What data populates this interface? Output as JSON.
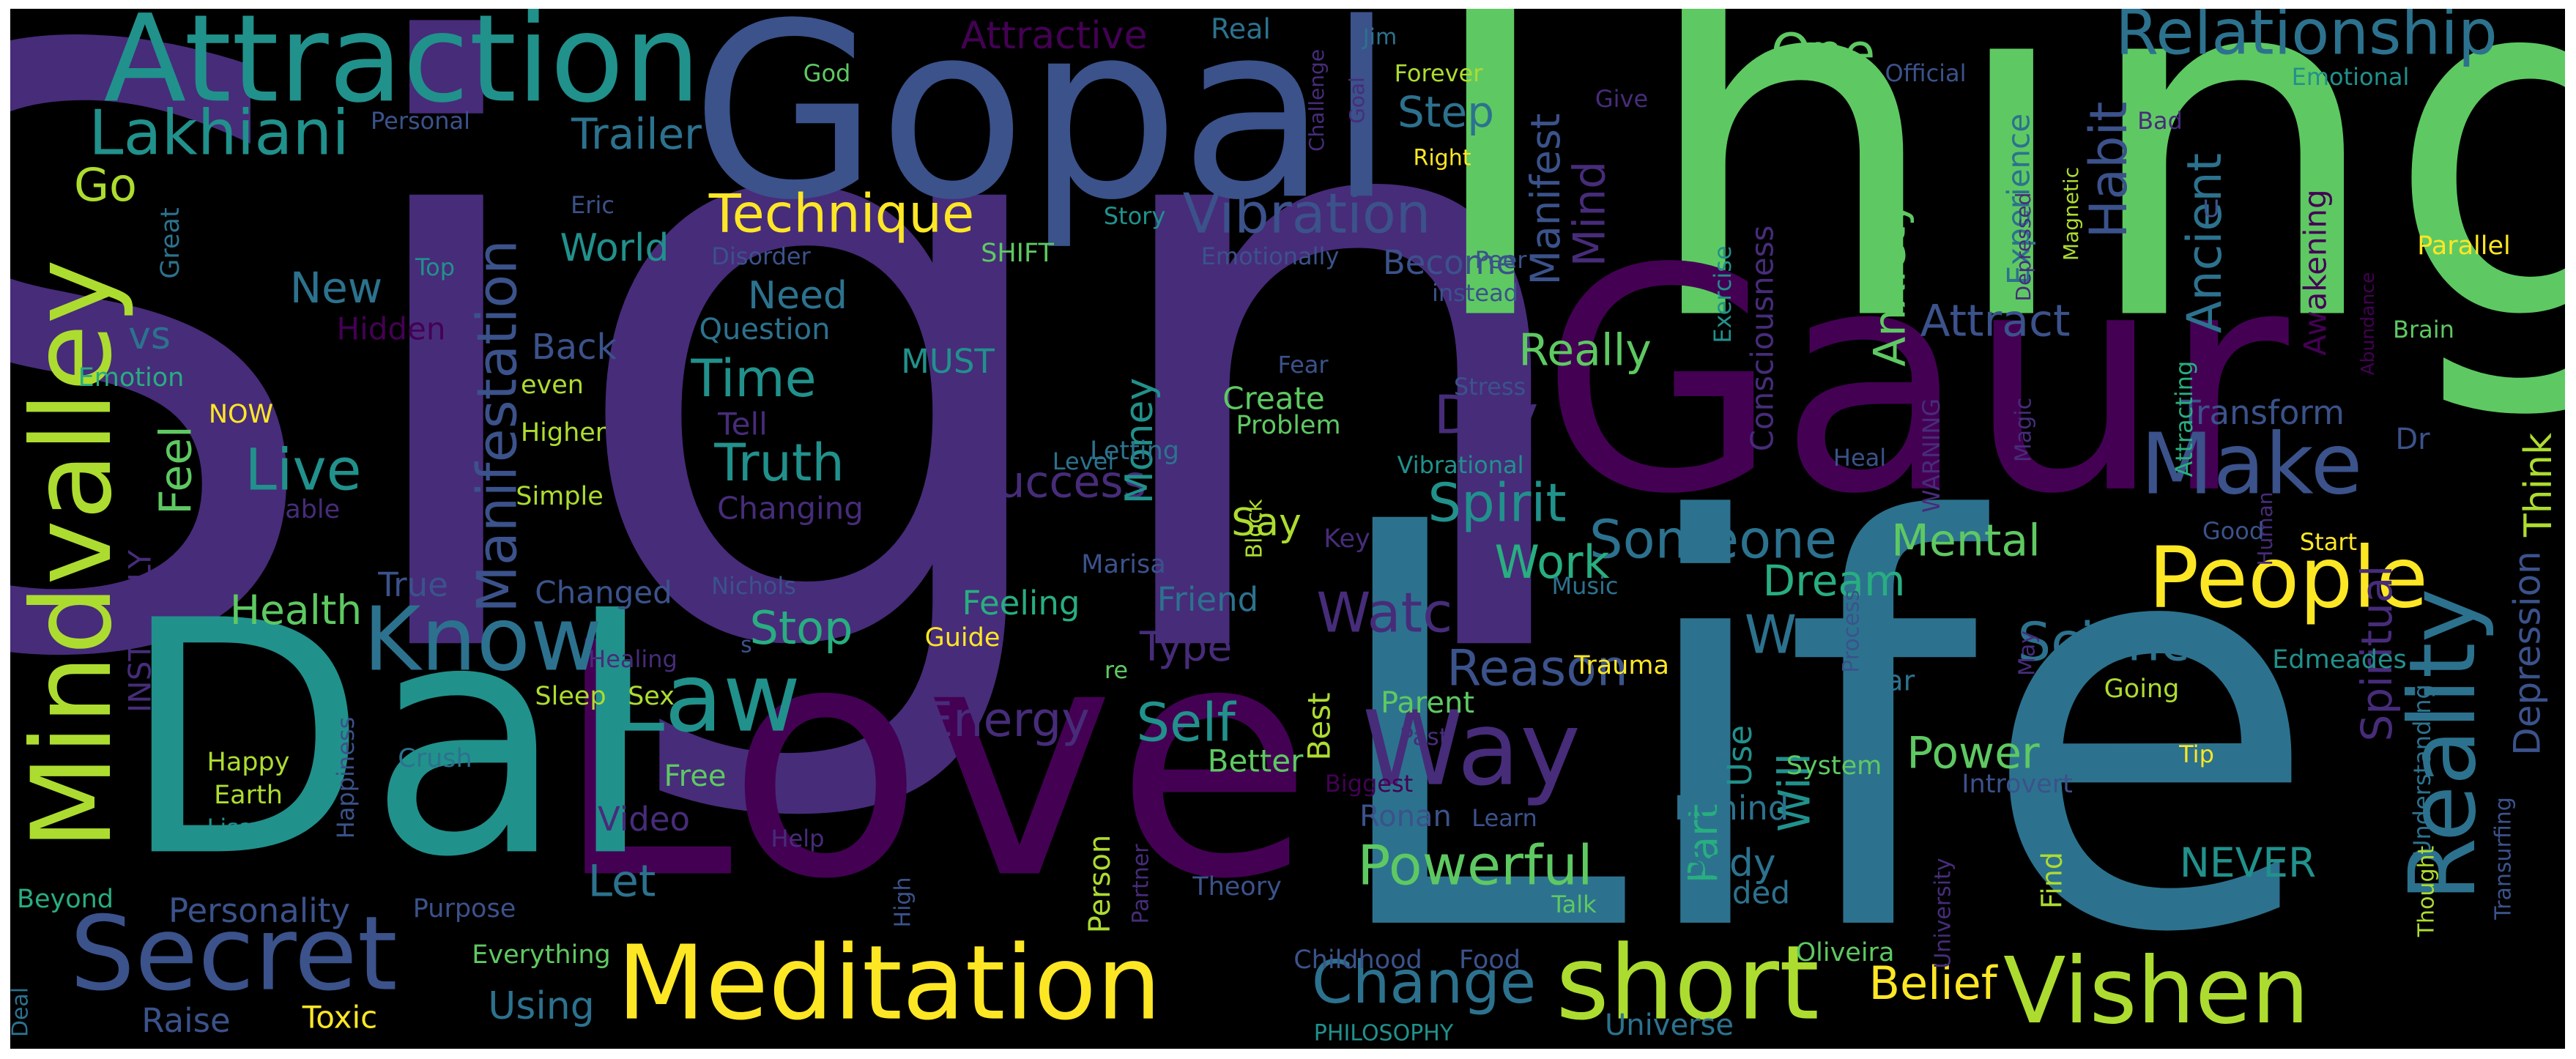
{
  "background": "#000000",
  "palette": {
    "c1": "#440154",
    "c2": "#472c7a",
    "c3": "#3b528b",
    "c4": "#2c728e",
    "c5": "#21918c",
    "c6": "#28ae80",
    "c7": "#5ec962",
    "c8": "#addc30",
    "c9": "#fde725"
  },
  "words": [
    {
      "text": "Sign",
      "size": 1,
      "color": "c2"
    },
    {
      "text": "Thing",
      "size": 0.62,
      "color": "c7"
    },
    {
      "text": "Life",
      "size": 0.74,
      "color": "c4"
    },
    {
      "text": "Gaur",
      "size": 0.52,
      "color": "c1"
    },
    {
      "text": "Love",
      "size": 0.55,
      "color": "c1"
    },
    {
      "text": "Gopal",
      "size": 0.42,
      "color": "c3"
    },
    {
      "text": "Dal",
      "size": 0.55,
      "color": "c5"
    },
    {
      "text": "Attraction",
      "size": 0.26,
      "color": "c5"
    },
    {
      "text": "Mindvalley",
      "size": 0.26,
      "color": "c8"
    },
    {
      "text": "Meditation",
      "size": 0.22,
      "color": "c9"
    },
    {
      "text": "short",
      "size": 0.22,
      "color": "c8"
    },
    {
      "text": "Secret",
      "size": 0.22,
      "color": "c3"
    },
    {
      "text": "Vishen",
      "size": 0.21,
      "color": "c8"
    },
    {
      "text": "Reality",
      "size": 0.2,
      "color": "c4"
    },
    {
      "text": "Way",
      "size": 0.2,
      "color": "c2"
    },
    {
      "text": "People",
      "size": 0.2,
      "color": "c9"
    },
    {
      "text": "Law",
      "size": 0.2,
      "color": "c5"
    },
    {
      "text": "Know",
      "size": 0.2,
      "color": "c4"
    },
    {
      "text": "Make",
      "size": 0.2,
      "color": "c3"
    },
    {
      "text": "Relationship",
      "size": 0.16,
      "color": "c4"
    },
    {
      "text": "Lakhiani",
      "size": 0.15,
      "color": "c5"
    },
    {
      "text": "Manifestation",
      "size": 0.14,
      "color": "c3"
    },
    {
      "text": "Change",
      "size": 0.13,
      "color": "c4"
    },
    {
      "text": "Powerful",
      "size": 0.13,
      "color": "c7"
    },
    {
      "text": "Vibration",
      "size": 0.13,
      "color": "c3"
    },
    {
      "text": "Technique",
      "size": 0.13,
      "color": "c9"
    },
    {
      "text": "Watch",
      "size": 0.13,
      "color": "c2"
    },
    {
      "text": "Someone",
      "size": 0.12,
      "color": "c4"
    },
    {
      "text": "Truth",
      "size": 0.12,
      "color": "c5"
    },
    {
      "text": "Spirit",
      "size": 0.12,
      "color": "c5"
    },
    {
      "text": "Energy",
      "size": 0.12,
      "color": "c2"
    },
    {
      "text": "Self",
      "size": 0.12,
      "color": "c5"
    },
    {
      "text": "Success",
      "size": 0.12,
      "color": "c2"
    },
    {
      "text": "Science",
      "size": 0.12,
      "color": "c4"
    },
    {
      "text": "Want",
      "size": 0.12,
      "color": "c4"
    },
    {
      "text": "Day",
      "size": 0.12,
      "color": "c2"
    },
    {
      "text": "Reason",
      "size": 0.12,
      "color": "c3"
    },
    {
      "text": "Live",
      "size": 0.12,
      "color": "c5"
    },
    {
      "text": "Time",
      "size": 0.12,
      "color": "c5"
    },
    {
      "text": "Belief",
      "size": 0.11,
      "color": "c9"
    },
    {
      "text": "Trailer",
      "size": 0.1,
      "color": "c4"
    },
    {
      "text": "Step",
      "size": 0.1,
      "color": "c4"
    },
    {
      "text": "One",
      "size": 0.1,
      "color": "c7"
    },
    {
      "text": "World",
      "size": 0.09,
      "color": "c5"
    },
    {
      "text": "Go",
      "size": 0.11,
      "color": "c8"
    },
    {
      "text": "Habit",
      "size": 0.11,
      "color": "c3"
    },
    {
      "text": "Anxiety",
      "size": 0.11,
      "color": "c7"
    },
    {
      "text": "Ancient",
      "size": 0.11,
      "color": "c4"
    },
    {
      "text": "Attract",
      "size": 0.11,
      "color": "c3"
    },
    {
      "text": "Mind",
      "size": 0.11,
      "color": "c2"
    },
    {
      "text": "Manifest",
      "size": 0.11,
      "color": "c3"
    },
    {
      "text": "Really",
      "size": 0.11,
      "color": "c7"
    },
    {
      "text": "Work",
      "size": 0.11,
      "color": "c6"
    },
    {
      "text": "Mental",
      "size": 0.11,
      "color": "c7"
    },
    {
      "text": "Dream",
      "size": 0.11,
      "color": "c6"
    },
    {
      "text": "Stop",
      "size": 0.11,
      "color": "c6"
    },
    {
      "text": "Health",
      "size": 0.11,
      "color": "c7"
    },
    {
      "text": "Feel",
      "size": 0.11,
      "color": "c7"
    },
    {
      "text": "Type",
      "size": 0.11,
      "color": "c2"
    },
    {
      "text": "Part",
      "size": 0.11,
      "color": "c6"
    },
    {
      "text": "Will",
      "size": 0.11,
      "color": "c5"
    },
    {
      "text": "Body",
      "size": 0.1,
      "color": "c4"
    },
    {
      "text": "Power",
      "size": 0.1,
      "color": "c7"
    },
    {
      "text": "Let",
      "size": 0.1,
      "color": "c4"
    },
    {
      "text": "Using",
      "size": 0.1,
      "color": "c4"
    },
    {
      "text": "Spiritual",
      "size": 0.1,
      "color": "c2"
    },
    {
      "text": "Depression",
      "size": 0.1,
      "color": "c3"
    },
    {
      "text": "NEVER",
      "size": 0.1,
      "color": "c5"
    },
    {
      "text": "Think",
      "size": 0.1,
      "color": "c8"
    },
    {
      "text": "Money",
      "size": 0.1,
      "color": "c5"
    },
    {
      "text": "Need",
      "size": 0.1,
      "color": "c4"
    },
    {
      "text": "New",
      "size": 0.1,
      "color": "c4"
    },
    {
      "text": "Attractive",
      "size": 0.09,
      "color": "c1"
    },
    {
      "text": "vs",
      "size": 0.09,
      "color": "c4"
    },
    {
      "text": "Say",
      "size": 0.09,
      "color": "c8"
    },
    {
      "text": "Use",
      "size": 0.09,
      "color": "c5"
    },
    {
      "text": "Back",
      "size": 0.09,
      "color": "c3"
    },
    {
      "text": "Become",
      "size": 0.08,
      "color": "c3"
    },
    {
      "text": "Personality",
      "size": 0.08,
      "color": "c3"
    },
    {
      "text": "Behind",
      "size": 0.08,
      "color": "c4"
    },
    {
      "text": "Guided",
      "size": 0.08,
      "color": "c4"
    },
    {
      "text": "Transform",
      "size": 0.08,
      "color": "c3"
    },
    {
      "text": "Consciousness",
      "size": 0.08,
      "color": "c2"
    },
    {
      "text": "Experience",
      "size": 0.08,
      "color": "c4"
    },
    {
      "text": "Awakening",
      "size": 0.08,
      "color": "c1"
    },
    {
      "text": "True",
      "size": 0.08,
      "color": "c3"
    },
    {
      "text": "Changed",
      "size": 0.08,
      "color": "c3"
    },
    {
      "text": "Friend",
      "size": 0.08,
      "color": "c4"
    },
    {
      "text": "Question",
      "size": 0.08,
      "color": "c4"
    },
    {
      "text": "Create",
      "size": 0.08,
      "color": "c7"
    },
    {
      "text": "Feeling",
      "size": 0.08,
      "color": "c6"
    },
    {
      "text": "Changing",
      "size": 0.08,
      "color": "c2"
    },
    {
      "text": "Hidden",
      "size": 0.08,
      "color": "c1"
    },
    {
      "text": "INSTANTLY",
      "size": 0.08,
      "color": "c2"
    },
    {
      "text": "MUST",
      "size": 0.08,
      "color": "c5"
    },
    {
      "text": "Better",
      "size": 0.08,
      "color": "c7"
    },
    {
      "text": "Free",
      "size": 0.08,
      "color": "c7"
    },
    {
      "text": "Video",
      "size": 0.08,
      "color": "c2"
    },
    {
      "text": "Raise",
      "size": 0.08,
      "color": "c3"
    },
    {
      "text": "Toxic",
      "size": 0.08,
      "color": "c9"
    },
    {
      "text": "Person",
      "size": 0.08,
      "color": "c8"
    },
    {
      "text": "Ronan",
      "size": 0.08,
      "color": "c3"
    },
    {
      "text": "Best",
      "size": 0.08,
      "color": "c8"
    },
    {
      "text": "Parent",
      "size": 0.08,
      "color": "c7"
    },
    {
      "text": "Year",
      "size": 0.08,
      "color": "c4"
    },
    {
      "text": "Find",
      "size": 0.08,
      "color": "c8"
    },
    {
      "text": "Dr",
      "size": 0.08,
      "color": "c3"
    },
    {
      "text": "Tell",
      "size": 0.08,
      "color": "c2"
    },
    {
      "text": "Emotion",
      "size": 0.06,
      "color": "c6"
    },
    {
      "text": "Great",
      "size": 0.06,
      "color": "c4"
    },
    {
      "text": "NOW",
      "size": 0.07,
      "color": "c9"
    },
    {
      "text": "Parable",
      "size": 0.06,
      "color": "c2"
    },
    {
      "text": "Simple",
      "size": 0.06,
      "color": "c8"
    },
    {
      "text": "Higher",
      "size": 0.06,
      "color": "c8"
    },
    {
      "text": "even",
      "size": 0.06,
      "color": "c8"
    },
    {
      "text": "Happy",
      "size": 0.06,
      "color": "c8"
    },
    {
      "text": "Earth",
      "size": 0.06,
      "color": "c8"
    },
    {
      "text": "Lisa",
      "size": 0.06,
      "color": "c5"
    },
    {
      "text": "Beyond",
      "size": 0.06,
      "color": "c6"
    },
    {
      "text": "Deal",
      "size": 0.05,
      "color": "c4"
    },
    {
      "text": "Everything",
      "size": 0.06,
      "color": "c7"
    },
    {
      "text": "Purpose",
      "size": 0.06,
      "color": "c3"
    },
    {
      "text": "Happiness",
      "size": 0.06,
      "color": "c3"
    },
    {
      "text": "Crush",
      "size": 0.06,
      "color": "c4"
    },
    {
      "text": "Healing",
      "size": 0.06,
      "color": "c2"
    },
    {
      "text": "Sleep",
      "size": 0.06,
      "color": "c8"
    },
    {
      "text": "Sex",
      "size": 0.06,
      "color": "c8"
    },
    {
      "text": "Nichols",
      "size": 0.06,
      "color": "c3"
    },
    {
      "text": "Guide",
      "size": 0.06,
      "color": "c9"
    },
    {
      "text": "Marisa",
      "size": 0.06,
      "color": "c3"
    },
    {
      "text": "Letting",
      "size": 0.06,
      "color": "c4"
    },
    {
      "text": "Level",
      "size": 0.06,
      "color": "c4"
    },
    {
      "text": "Problem",
      "size": 0.06,
      "color": "c7"
    },
    {
      "text": "Block",
      "size": 0.06,
      "color": "c8"
    },
    {
      "text": "Key",
      "size": 0.06,
      "color": "c2"
    },
    {
      "text": "Fear",
      "size": 0.06,
      "color": "c3"
    },
    {
      "text": "Stress",
      "size": 0.06,
      "color": "c3"
    },
    {
      "text": "Vibrational",
      "size": 0.06,
      "color": "c5"
    },
    {
      "text": "Music",
      "size": 0.06,
      "color": "c4"
    },
    {
      "text": "Trauma",
      "size": 0.06,
      "color": "c9"
    },
    {
      "text": "Past",
      "size": 0.06,
      "color": "c2"
    },
    {
      "text": "Biggest",
      "size": 0.06,
      "color": "c1"
    },
    {
      "text": "Learn",
      "size": 0.06,
      "color": "c3"
    },
    {
      "text": "Talk",
      "size": 0.06,
      "color": "c7"
    },
    {
      "text": "Theory",
      "size": 0.06,
      "color": "c3"
    },
    {
      "text": "High",
      "size": 0.06,
      "color": "c3"
    },
    {
      "text": "Help",
      "size": 0.06,
      "color": "c2"
    },
    {
      "text": "Partner",
      "size": 0.06,
      "color": "c2"
    },
    {
      "text": "re",
      "size": 0.06,
      "color": "c7"
    },
    {
      "text": "s",
      "size": 0.06,
      "color": "c3"
    },
    {
      "text": "Childhood",
      "size": 0.06,
      "color": "c3"
    },
    {
      "text": "Food",
      "size": 0.06,
      "color": "c3"
    },
    {
      "text": "PHILOSOPHY",
      "size": 0.06,
      "color": "c5"
    },
    {
      "text": "Universe",
      "size": 0.06,
      "color": "c4"
    },
    {
      "text": "Oliveira",
      "size": 0.06,
      "color": "c7"
    },
    {
      "text": "University",
      "size": 0.06,
      "color": "c2"
    },
    {
      "text": "System",
      "size": 0.06,
      "color": "c7"
    },
    {
      "text": "Introvert",
      "size": 0.06,
      "color": "c3"
    },
    {
      "text": "Process",
      "size": 0.06,
      "color": "c3"
    },
    {
      "text": "May",
      "size": 0.06,
      "color": "c2"
    },
    {
      "text": "Going",
      "size": 0.06,
      "color": "c8"
    },
    {
      "text": "Tip",
      "size": 0.06,
      "color": "c9"
    },
    {
      "text": "Edmeades",
      "size": 0.06,
      "color": "c5"
    },
    {
      "text": "Understanding",
      "size": 0.06,
      "color": "c4"
    },
    {
      "text": "Transurfing",
      "size": 0.06,
      "color": "c3"
    },
    {
      "text": "Thought",
      "size": 0.06,
      "color": "c8"
    },
    {
      "text": "Human",
      "size": 0.06,
      "color": "c2"
    },
    {
      "text": "Attracting",
      "size": 0.06,
      "color": "c6"
    },
    {
      "text": "Start",
      "size": 0.06,
      "color": "c9"
    },
    {
      "text": "Good",
      "size": 0.06,
      "color": "c3"
    },
    {
      "text": "Magic",
      "size": 0.06,
      "color": "c2"
    },
    {
      "text": "WARNING",
      "size": 0.06,
      "color": "c2"
    },
    {
      "text": "Heal",
      "size": 0.06,
      "color": "c3"
    },
    {
      "text": "Exercise",
      "size": 0.06,
      "color": "c5"
    },
    {
      "text": "Peer",
      "size": 0.06,
      "color": "c3"
    },
    {
      "text": "instead",
      "size": 0.06,
      "color": "c3"
    },
    {
      "text": "Emotionally",
      "size": 0.06,
      "color": "c3"
    },
    {
      "text": "SHIFT",
      "size": 0.06,
      "color": "c7"
    },
    {
      "text": "Story",
      "size": 0.06,
      "color": "c5"
    },
    {
      "text": "Disorder",
      "size": 0.06,
      "color": "c3"
    },
    {
      "text": "Eric",
      "size": 0.06,
      "color": "c3"
    },
    {
      "text": "Top",
      "size": 0.06,
      "color": "c5"
    },
    {
      "text": "Personal",
      "size": 0.06,
      "color": "c3"
    },
    {
      "text": "God",
      "size": 0.06,
      "color": "c7"
    },
    {
      "text": "Real",
      "size": 0.07,
      "color": "c4"
    },
    {
      "text": "Jim",
      "size": 0.06,
      "color": "c4"
    },
    {
      "text": "Challenge",
      "size": 0.06,
      "color": "c2"
    },
    {
      "text": "Goal",
      "size": 0.06,
      "color": "c2"
    },
    {
      "text": "Forever",
      "size": 0.06,
      "color": "c8"
    },
    {
      "text": "Right",
      "size": 0.06,
      "color": "c9"
    },
    {
      "text": "Give",
      "size": 0.06,
      "color": "c2"
    },
    {
      "text": "Official",
      "size": 0.06,
      "color": "c3"
    },
    {
      "text": "Bad",
      "size": 0.06,
      "color": "c2"
    },
    {
      "text": "Emotional",
      "size": 0.06,
      "color": "c5"
    },
    {
      "text": "Depressed",
      "size": 0.06,
      "color": "c2"
    },
    {
      "text": "Magnetic",
      "size": 0.06,
      "color": "c8"
    },
    {
      "text": "U",
      "size": 0.06,
      "color": "c3"
    },
    {
      "text": "Parallel",
      "size": 0.06,
      "color": "c9"
    },
    {
      "text": "Brain",
      "size": 0.06,
      "color": "c7"
    },
    {
      "text": "Abundance",
      "size": 0.06,
      "color": "c1"
    }
  ]
}
